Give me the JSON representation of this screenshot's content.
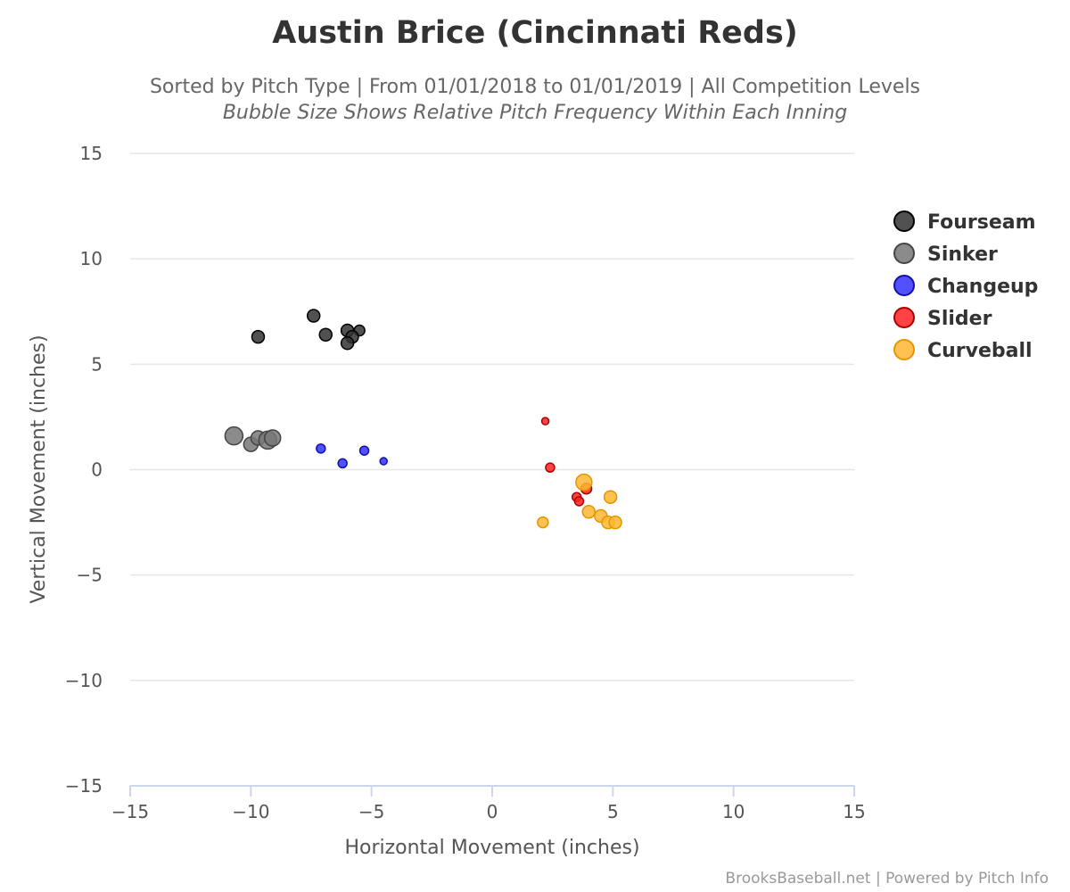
{
  "chart_data": {
    "type": "scatter",
    "title": "Austin Brice (Cincinnati Reds)",
    "subtitle": "Sorted by Pitch Type | From 01/01/2018 to 01/01/2019 | All Competition Levels",
    "subtitle_note": "Bubble Size Shows Relative Pitch Frequency Within Each Inning",
    "xlabel": "Horizontal Movement (inches)",
    "ylabel": "Vertical Movement (inches)",
    "xlim": [
      -15,
      15
    ],
    "ylim": [
      -15,
      15
    ],
    "x_ticks": [
      -15,
      -10,
      -5,
      0,
      5,
      10,
      15
    ],
    "y_ticks": [
      -15,
      -10,
      -5,
      0,
      5,
      10,
      15
    ],
    "x_tick_labels": [
      "−15",
      "−10",
      "−5",
      "0",
      "5",
      "10",
      "15"
    ],
    "y_tick_labels": [
      "−15",
      "−10",
      "−5",
      "0",
      "5",
      "10",
      "15"
    ],
    "grid": "horizontal",
    "legend_position": "right",
    "credit": "BrooksBaseball.net | Powered by Pitch Info",
    "series": [
      {
        "name": "Fourseam",
        "color": "#333333",
        "stroke": "#000000",
        "points": [
          {
            "x": -9.7,
            "y": 6.3,
            "size": 7
          },
          {
            "x": -7.4,
            "y": 7.3,
            "size": 7
          },
          {
            "x": -6.9,
            "y": 6.4,
            "size": 7
          },
          {
            "x": -6.0,
            "y": 6.6,
            "size": 7
          },
          {
            "x": -5.5,
            "y": 6.6,
            "size": 6
          },
          {
            "x": -5.8,
            "y": 6.3,
            "size": 7
          },
          {
            "x": -6.0,
            "y": 6.0,
            "size": 7
          }
        ]
      },
      {
        "name": "Sinker",
        "color": "#777777",
        "stroke": "#444444",
        "points": [
          {
            "x": -10.7,
            "y": 1.6,
            "size": 10
          },
          {
            "x": -10.0,
            "y": 1.2,
            "size": 8
          },
          {
            "x": -9.7,
            "y": 1.5,
            "size": 8
          },
          {
            "x": -9.3,
            "y": 1.4,
            "size": 10
          },
          {
            "x": -9.1,
            "y": 1.5,
            "size": 9
          }
        ]
      },
      {
        "name": "Changeup",
        "color": "#3333ff",
        "stroke": "#1111aa",
        "points": [
          {
            "x": -7.1,
            "y": 1.0,
            "size": 5
          },
          {
            "x": -6.2,
            "y": 0.3,
            "size": 5
          },
          {
            "x": -5.3,
            "y": 0.9,
            "size": 5
          },
          {
            "x": -4.5,
            "y": 0.4,
            "size": 4
          }
        ]
      },
      {
        "name": "Slider",
        "color": "#ff2222",
        "stroke": "#aa0000",
        "points": [
          {
            "x": 2.2,
            "y": 2.3,
            "size": 4
          },
          {
            "x": 2.4,
            "y": 0.1,
            "size": 5
          },
          {
            "x": 3.5,
            "y": -1.3,
            "size": 5
          },
          {
            "x": 3.6,
            "y": -1.5,
            "size": 5
          },
          {
            "x": 3.9,
            "y": -0.9,
            "size": 6
          }
        ]
      },
      {
        "name": "Curveball",
        "color": "#ffb732",
        "stroke": "#e69500",
        "points": [
          {
            "x": 2.1,
            "y": -2.5,
            "size": 6
          },
          {
            "x": 3.8,
            "y": -0.6,
            "size": 9
          },
          {
            "x": 4.0,
            "y": -2.0,
            "size": 7
          },
          {
            "x": 4.5,
            "y": -2.2,
            "size": 7
          },
          {
            "x": 4.8,
            "y": -2.5,
            "size": 7
          },
          {
            "x": 4.9,
            "y": -1.3,
            "size": 7
          },
          {
            "x": 5.1,
            "y": -2.5,
            "size": 7
          }
        ]
      }
    ]
  }
}
